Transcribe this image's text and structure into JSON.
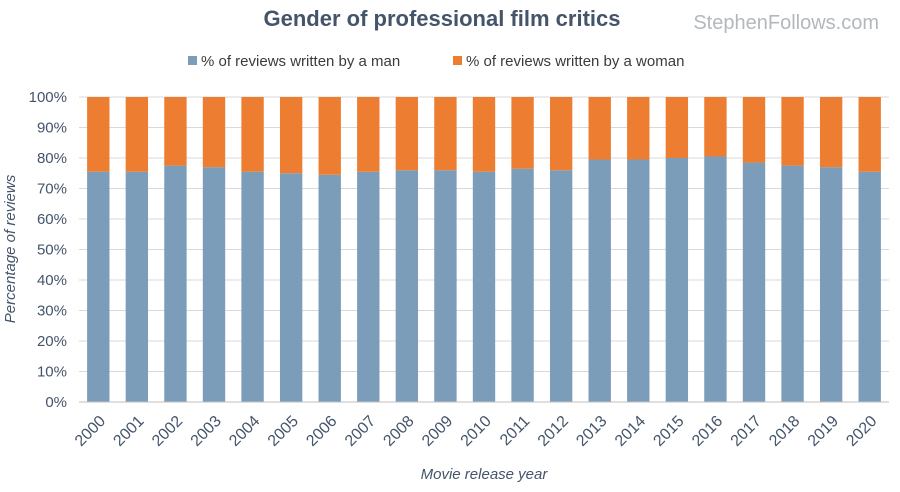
{
  "chart_data": {
    "type": "bar",
    "stacked": true,
    "title": "Gender of professional film critics",
    "watermark": "StephenFollows.com",
    "xlabel": "Movie release year",
    "ylabel": "Percentage of reviews",
    "ylim": [
      0,
      100
    ],
    "yticks": [
      "0%",
      "10%",
      "20%",
      "30%",
      "40%",
      "50%",
      "60%",
      "70%",
      "80%",
      "90%",
      "100%"
    ],
    "grid": true,
    "legend_position": "top",
    "categories": [
      "2000",
      "2001",
      "2002",
      "2003",
      "2004",
      "2005",
      "2006",
      "2007",
      "2008",
      "2009",
      "2010",
      "2011",
      "2012",
      "2013",
      "2014",
      "2015",
      "2016",
      "2017",
      "2018",
      "2019",
      "2020"
    ],
    "series": [
      {
        "name": "% of reviews written by a man",
        "color": "#7b9db9",
        "values": [
          75.5,
          75.5,
          77.5,
          77,
          75.5,
          75,
          74.5,
          75.5,
          76,
          76,
          75.5,
          76.5,
          76,
          79.5,
          79.5,
          80,
          80.5,
          78.5,
          77.5,
          77,
          75.5
        ]
      },
      {
        "name": "% of reviews written by a woman",
        "color": "#ed7d31",
        "values": [
          24.5,
          24.5,
          22.5,
          23,
          24.5,
          25,
          25.5,
          24.5,
          24,
          24,
          24.5,
          23.5,
          24,
          20.5,
          20.5,
          20,
          19.5,
          21.5,
          22.5,
          23,
          24.5
        ]
      }
    ]
  }
}
